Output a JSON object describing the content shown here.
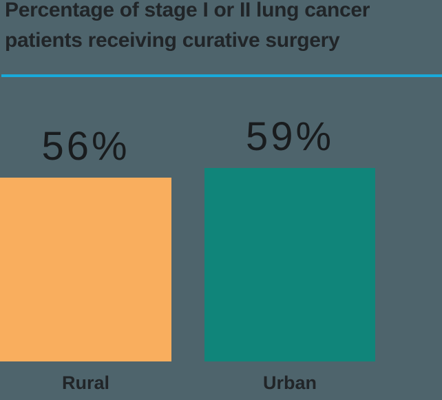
{
  "chart_data": {
    "type": "bar",
    "title": "Percentage of stage I or II lung cancer patients receiving curative surgery",
    "title_lines": [
      "Percentage of stage I or II lung cancer",
      "patients receiving curative surgery"
    ],
    "categories": [
      "Rural",
      "Urban"
    ],
    "values": [
      56,
      59
    ],
    "value_labels": [
      "56%",
      "59%"
    ],
    "ylim": [
      0,
      59
    ],
    "grid": false,
    "legend": "none",
    "xlabel": "",
    "ylabel": "",
    "bar_colors": [
      "#f9ae5e",
      "#10857a"
    ],
    "accent_rule_color": "#18a9da",
    "text_color": "#212528",
    "value_text_color": "#191c1e",
    "background_color": "#4e646c"
  }
}
